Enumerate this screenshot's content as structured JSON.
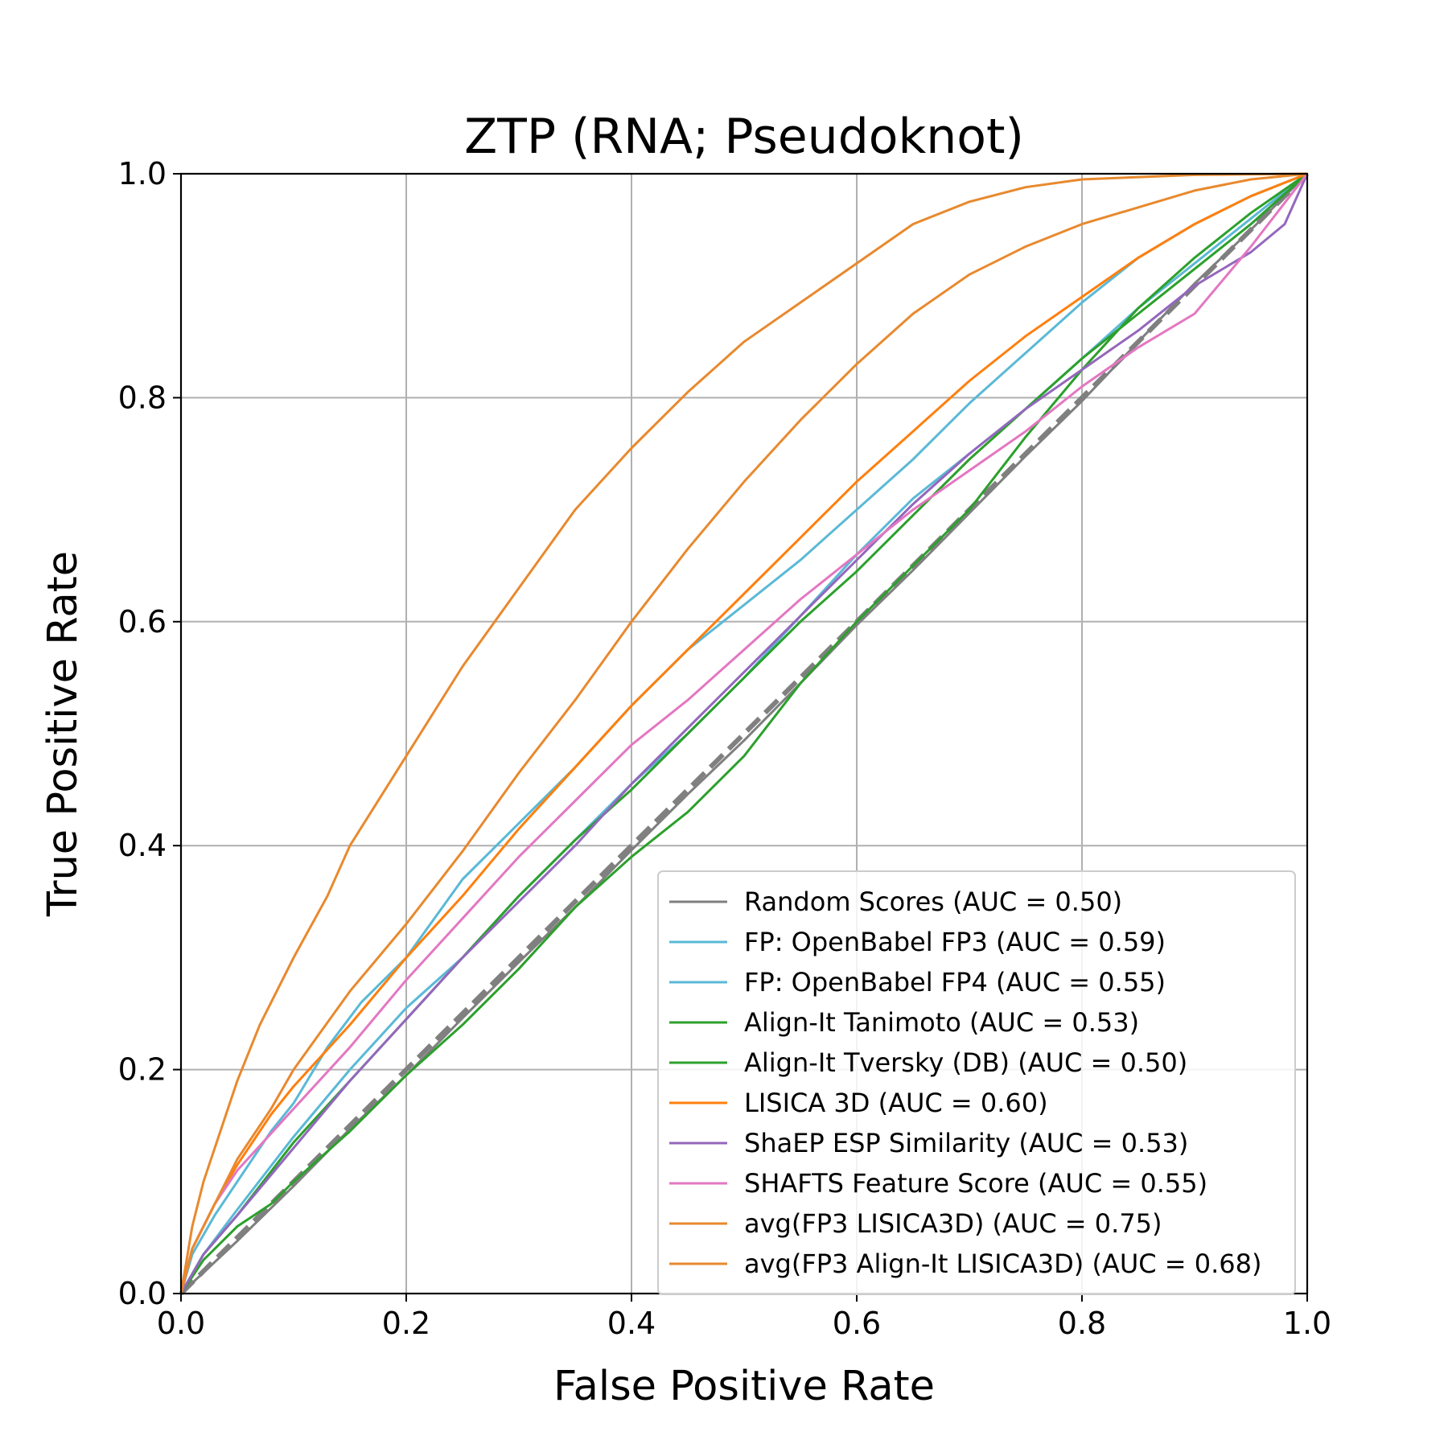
{
  "chart_data": {
    "type": "line",
    "title": "ZTP (RNA; Pseudoknot)",
    "xlabel": "False Positive Rate",
    "ylabel": "True Positive Rate",
    "xlim": [
      0.0,
      1.0
    ],
    "ylim": [
      0.0,
      1.0
    ],
    "xticks": [
      "0.0",
      "0.2",
      "0.4",
      "0.6",
      "0.8",
      "1.0"
    ],
    "yticks": [
      "0.0",
      "0.2",
      "0.4",
      "0.6",
      "0.8",
      "1.0"
    ],
    "grid": true,
    "legend_position": "lower-right",
    "diagonal_reference": {
      "color": "#808080",
      "dashed": true,
      "points": [
        [
          0,
          0
        ],
        [
          1,
          1
        ]
      ]
    },
    "series": [
      {
        "name": "Random Scores (AUC = 0.50)",
        "color": "#7f7f7f",
        "points": [
          [
            0,
            0
          ],
          [
            0.05,
            0.047
          ],
          [
            0.1,
            0.096
          ],
          [
            0.15,
            0.147
          ],
          [
            0.2,
            0.195
          ],
          [
            0.25,
            0.246
          ],
          [
            0.3,
            0.296
          ],
          [
            0.35,
            0.345
          ],
          [
            0.4,
            0.396
          ],
          [
            0.45,
            0.446
          ],
          [
            0.5,
            0.494
          ],
          [
            0.55,
            0.545
          ],
          [
            0.6,
            0.597
          ],
          [
            0.65,
            0.646
          ],
          [
            0.7,
            0.697
          ],
          [
            0.75,
            0.748
          ],
          [
            0.8,
            0.797
          ],
          [
            0.85,
            0.85
          ],
          [
            0.9,
            0.902
          ],
          [
            0.95,
            0.95
          ],
          [
            1,
            1
          ]
        ]
      },
      {
        "name": "FP: OpenBabel FP3 (AUC = 0.59)",
        "color": "#5ab9d6",
        "points": [
          [
            0,
            0
          ],
          [
            0.01,
            0.035
          ],
          [
            0.03,
            0.07
          ],
          [
            0.05,
            0.1
          ],
          [
            0.08,
            0.145
          ],
          [
            0.1,
            0.17
          ],
          [
            0.13,
            0.22
          ],
          [
            0.16,
            0.26
          ],
          [
            0.2,
            0.3
          ],
          [
            0.25,
            0.37
          ],
          [
            0.3,
            0.42
          ],
          [
            0.35,
            0.47
          ],
          [
            0.4,
            0.525
          ],
          [
            0.45,
            0.575
          ],
          [
            0.5,
            0.615
          ],
          [
            0.55,
            0.655
          ],
          [
            0.6,
            0.7
          ],
          [
            0.65,
            0.745
          ],
          [
            0.7,
            0.795
          ],
          [
            0.75,
            0.84
          ],
          [
            0.8,
            0.885
          ],
          [
            0.85,
            0.925
          ],
          [
            0.9,
            0.955
          ],
          [
            0.95,
            0.98
          ],
          [
            1,
            1
          ]
        ]
      },
      {
        "name": "FP: OpenBabel FP4 (AUC = 0.55)",
        "color": "#5ab9d6",
        "points": [
          [
            0,
            0
          ],
          [
            0.02,
            0.035
          ],
          [
            0.05,
            0.075
          ],
          [
            0.1,
            0.14
          ],
          [
            0.15,
            0.2
          ],
          [
            0.2,
            0.255
          ],
          [
            0.25,
            0.3
          ],
          [
            0.3,
            0.355
          ],
          [
            0.35,
            0.405
          ],
          [
            0.4,
            0.455
          ],
          [
            0.45,
            0.5
          ],
          [
            0.5,
            0.55
          ],
          [
            0.55,
            0.605
          ],
          [
            0.6,
            0.66
          ],
          [
            0.65,
            0.71
          ],
          [
            0.7,
            0.75
          ],
          [
            0.75,
            0.79
          ],
          [
            0.8,
            0.835
          ],
          [
            0.85,
            0.88
          ],
          [
            0.9,
            0.92
          ],
          [
            0.95,
            0.96
          ],
          [
            1,
            1
          ]
        ]
      },
      {
        "name": "Align-It Tanimoto (AUC = 0.53)",
        "color": "#2ca02c",
        "points": [
          [
            0,
            0
          ],
          [
            0.02,
            0.035
          ],
          [
            0.05,
            0.07
          ],
          [
            0.1,
            0.135
          ],
          [
            0.15,
            0.19
          ],
          [
            0.2,
            0.245
          ],
          [
            0.25,
            0.3
          ],
          [
            0.3,
            0.355
          ],
          [
            0.35,
            0.405
          ],
          [
            0.4,
            0.45
          ],
          [
            0.45,
            0.5
          ],
          [
            0.5,
            0.55
          ],
          [
            0.55,
            0.6
          ],
          [
            0.6,
            0.645
          ],
          [
            0.65,
            0.695
          ],
          [
            0.7,
            0.745
          ],
          [
            0.75,
            0.79
          ],
          [
            0.8,
            0.835
          ],
          [
            0.85,
            0.875
          ],
          [
            0.9,
            0.915
          ],
          [
            0.95,
            0.955
          ],
          [
            1,
            1
          ]
        ]
      },
      {
        "name": "Align-It Tversky (DB) (AUC = 0.50)",
        "color": "#2ca02c",
        "points": [
          [
            0,
            0
          ],
          [
            0.02,
            0.03
          ],
          [
            0.05,
            0.06
          ],
          [
            0.08,
            0.08
          ],
          [
            0.1,
            0.1
          ],
          [
            0.15,
            0.145
          ],
          [
            0.2,
            0.195
          ],
          [
            0.25,
            0.24
          ],
          [
            0.3,
            0.29
          ],
          [
            0.35,
            0.345
          ],
          [
            0.4,
            0.39
          ],
          [
            0.45,
            0.43
          ],
          [
            0.5,
            0.48
          ],
          [
            0.55,
            0.545
          ],
          [
            0.6,
            0.6
          ],
          [
            0.65,
            0.65
          ],
          [
            0.7,
            0.7
          ],
          [
            0.75,
            0.765
          ],
          [
            0.8,
            0.825
          ],
          [
            0.85,
            0.88
          ],
          [
            0.9,
            0.925
          ],
          [
            0.95,
            0.965
          ],
          [
            1,
            1
          ]
        ]
      },
      {
        "name": "LISICA 3D (AUC = 0.60)",
        "color": "#ff7f0e",
        "points": [
          [
            0,
            0
          ],
          [
            0.01,
            0.04
          ],
          [
            0.03,
            0.08
          ],
          [
            0.05,
            0.115
          ],
          [
            0.08,
            0.16
          ],
          [
            0.1,
            0.185
          ],
          [
            0.15,
            0.24
          ],
          [
            0.2,
            0.3
          ],
          [
            0.25,
            0.355
          ],
          [
            0.3,
            0.415
          ],
          [
            0.35,
            0.47
          ],
          [
            0.4,
            0.525
          ],
          [
            0.45,
            0.575
          ],
          [
            0.5,
            0.625
          ],
          [
            0.55,
            0.675
          ],
          [
            0.6,
            0.725
          ],
          [
            0.65,
            0.77
          ],
          [
            0.7,
            0.815
          ],
          [
            0.75,
            0.855
          ],
          [
            0.8,
            0.89
          ],
          [
            0.85,
            0.925
          ],
          [
            0.9,
            0.955
          ],
          [
            0.95,
            0.98
          ],
          [
            1,
            1
          ]
        ]
      },
      {
        "name": "ShaEP ESP Similarity (AUC = 0.53)",
        "color": "#9467bd",
        "points": [
          [
            0,
            0
          ],
          [
            0.02,
            0.035
          ],
          [
            0.05,
            0.07
          ],
          [
            0.1,
            0.13
          ],
          [
            0.15,
            0.19
          ],
          [
            0.2,
            0.245
          ],
          [
            0.25,
            0.3
          ],
          [
            0.3,
            0.35
          ],
          [
            0.35,
            0.4
          ],
          [
            0.4,
            0.455
          ],
          [
            0.45,
            0.505
          ],
          [
            0.5,
            0.555
          ],
          [
            0.55,
            0.605
          ],
          [
            0.6,
            0.655
          ],
          [
            0.65,
            0.705
          ],
          [
            0.7,
            0.75
          ],
          [
            0.75,
            0.79
          ],
          [
            0.8,
            0.825
          ],
          [
            0.85,
            0.86
          ],
          [
            0.9,
            0.9
          ],
          [
            0.95,
            0.93
          ],
          [
            0.98,
            0.955
          ],
          [
            1,
            1
          ]
        ]
      },
      {
        "name": "SHAFTS Feature Score (AUC = 0.55)",
        "color": "#e377c2",
        "points": [
          [
            0,
            0
          ],
          [
            0.01,
            0.04
          ],
          [
            0.03,
            0.08
          ],
          [
            0.05,
            0.11
          ],
          [
            0.1,
            0.165
          ],
          [
            0.15,
            0.22
          ],
          [
            0.2,
            0.28
          ],
          [
            0.25,
            0.335
          ],
          [
            0.3,
            0.39
          ],
          [
            0.35,
            0.44
          ],
          [
            0.4,
            0.49
          ],
          [
            0.45,
            0.53
          ],
          [
            0.5,
            0.575
          ],
          [
            0.55,
            0.62
          ],
          [
            0.6,
            0.66
          ],
          [
            0.65,
            0.7
          ],
          [
            0.7,
            0.735
          ],
          [
            0.75,
            0.77
          ],
          [
            0.8,
            0.81
          ],
          [
            0.85,
            0.845
          ],
          [
            0.9,
            0.875
          ],
          [
            0.95,
            0.935
          ],
          [
            1,
            1
          ]
        ]
      },
      {
        "name": "avg(FP3 LISICA3D) (AUC = 0.75)",
        "color": "#e8892e",
        "points": [
          [
            0,
            0
          ],
          [
            0.01,
            0.06
          ],
          [
            0.02,
            0.1
          ],
          [
            0.03,
            0.13
          ],
          [
            0.05,
            0.19
          ],
          [
            0.07,
            0.24
          ],
          [
            0.1,
            0.3
          ],
          [
            0.13,
            0.355
          ],
          [
            0.15,
            0.4
          ],
          [
            0.2,
            0.48
          ],
          [
            0.25,
            0.56
          ],
          [
            0.3,
            0.63
          ],
          [
            0.35,
            0.7
          ],
          [
            0.4,
            0.755
          ],
          [
            0.45,
            0.805
          ],
          [
            0.5,
            0.85
          ],
          [
            0.55,
            0.885
          ],
          [
            0.6,
            0.92
          ],
          [
            0.65,
            0.955
          ],
          [
            0.7,
            0.975
          ],
          [
            0.75,
            0.988
          ],
          [
            0.8,
            0.995
          ],
          [
            0.9,
            0.999
          ],
          [
            1,
            1
          ]
        ]
      },
      {
        "name": "avg(FP3 Align-It LISICA3D) (AUC = 0.68)",
        "color": "#e8892e",
        "points": [
          [
            0,
            0
          ],
          [
            0.01,
            0.04
          ],
          [
            0.03,
            0.08
          ],
          [
            0.05,
            0.12
          ],
          [
            0.08,
            0.165
          ],
          [
            0.1,
            0.2
          ],
          [
            0.15,
            0.27
          ],
          [
            0.2,
            0.33
          ],
          [
            0.25,
            0.395
          ],
          [
            0.3,
            0.465
          ],
          [
            0.35,
            0.53
          ],
          [
            0.4,
            0.6
          ],
          [
            0.45,
            0.665
          ],
          [
            0.5,
            0.725
          ],
          [
            0.55,
            0.78
          ],
          [
            0.6,
            0.83
          ],
          [
            0.65,
            0.875
          ],
          [
            0.7,
            0.91
          ],
          [
            0.75,
            0.935
          ],
          [
            0.8,
            0.955
          ],
          [
            0.85,
            0.97
          ],
          [
            0.9,
            0.985
          ],
          [
            0.95,
            0.995
          ],
          [
            1,
            1
          ]
        ]
      }
    ]
  }
}
